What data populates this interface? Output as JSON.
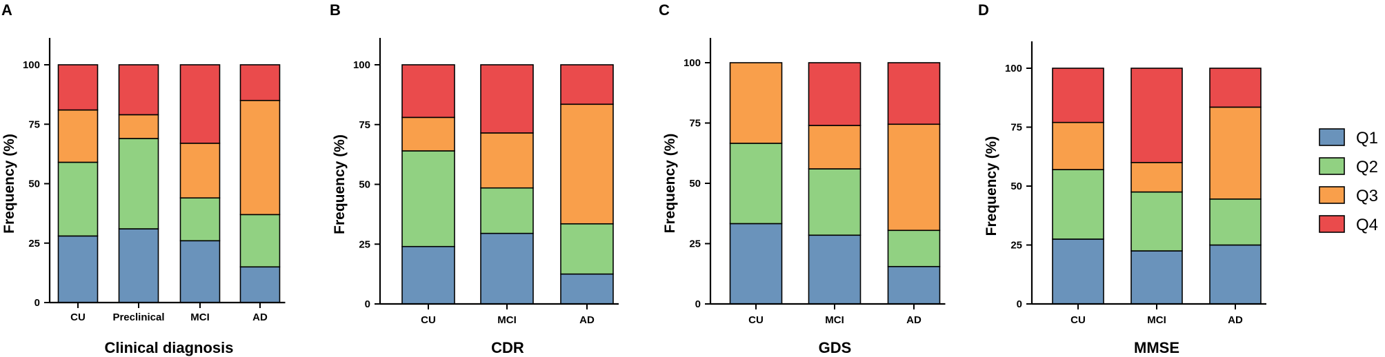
{
  "colors": {
    "Q1": "#6a93bb",
    "Q2": "#91d182",
    "Q3": "#f99f4b",
    "Q4": "#ea4b4c"
  },
  "legend": [
    "Q1",
    "Q2",
    "Q3",
    "Q4"
  ],
  "chart_data": [
    {
      "type": "bar",
      "stacked": true,
      "panel": "A",
      "xlabel": "Clinical diagnosis",
      "ylabel": "Frequency (%)",
      "ylim": [
        0,
        100
      ],
      "yticks": [
        0,
        25,
        50,
        75,
        100
      ],
      "categories": [
        "CU",
        "Preclinical",
        "MCI",
        "AD"
      ],
      "series": [
        {
          "name": "Q1",
          "values": [
            28,
            31,
            26,
            15
          ]
        },
        {
          "name": "Q2",
          "values": [
            31,
            38,
            18,
            22
          ]
        },
        {
          "name": "Q3",
          "values": [
            22,
            10,
            23,
            48
          ]
        },
        {
          "name": "Q4",
          "values": [
            19,
            21,
            33,
            15
          ]
        }
      ]
    },
    {
      "type": "bar",
      "stacked": true,
      "panel": "B",
      "xlabel": "CDR",
      "ylabel": "Frequency (%)",
      "ylim": [
        0,
        100
      ],
      "yticks": [
        0,
        25,
        50,
        75,
        100
      ],
      "categories": [
        "CU",
        "MCI",
        "AD"
      ],
      "series": [
        {
          "name": "Q1",
          "values": [
            24,
            29.5,
            12.5
          ]
        },
        {
          "name": "Q2",
          "values": [
            40,
            19,
            21
          ]
        },
        {
          "name": "Q3",
          "values": [
            14,
            23,
            50
          ]
        },
        {
          "name": "Q4",
          "values": [
            22,
            28.5,
            16.5
          ]
        }
      ]
    },
    {
      "type": "bar",
      "stacked": true,
      "panel": "C",
      "xlabel": "GDS",
      "ylabel": "Frequency (%)",
      "ylim": [
        0,
        100
      ],
      "yticks": [
        0,
        25,
        50,
        75,
        100
      ],
      "categories": [
        "CU",
        "MCI",
        "AD"
      ],
      "series": [
        {
          "name": "Q1",
          "values": [
            33.3,
            28.5,
            15.5
          ]
        },
        {
          "name": "Q2",
          "values": [
            33.3,
            27.5,
            15
          ]
        },
        {
          "name": "Q3",
          "values": [
            33.4,
            18,
            44
          ]
        },
        {
          "name": "Q4",
          "values": [
            0,
            26,
            25.5
          ]
        }
      ]
    },
    {
      "type": "bar",
      "stacked": true,
      "panel": "D",
      "xlabel": "MMSE",
      "ylabel": "Frequency (%)",
      "ylim": [
        0,
        100
      ],
      "yticks": [
        0,
        25,
        50,
        75,
        100
      ],
      "categories": [
        "CU",
        "MCI",
        "AD"
      ],
      "series": [
        {
          "name": "Q1",
          "values": [
            27.5,
            22.5,
            25
          ]
        },
        {
          "name": "Q2",
          "values": [
            29.5,
            25,
            19.5
          ]
        },
        {
          "name": "Q3",
          "values": [
            20,
            12.5,
            39
          ]
        },
        {
          "name": "Q4",
          "values": [
            23,
            40,
            16.5
          ]
        }
      ]
    }
  ]
}
